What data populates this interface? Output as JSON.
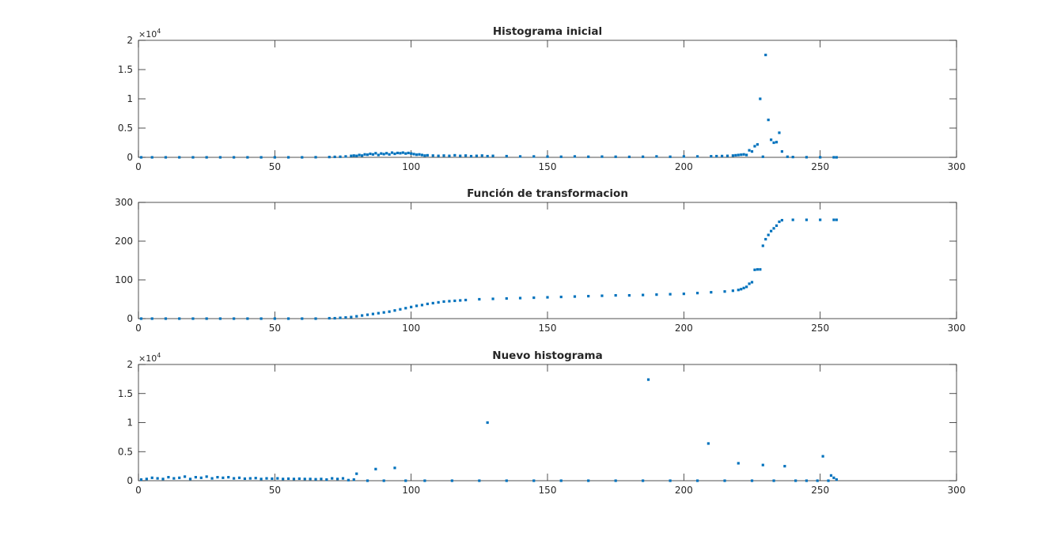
{
  "figure": {
    "background": "#ffffff"
  },
  "chart_data": [
    {
      "type": "scatter",
      "title": "Histograma inicial",
      "xlabel": "",
      "ylabel": "",
      "xlim": [
        0,
        300
      ],
      "ylim": [
        0,
        20000
      ],
      "x_ticks": [
        0,
        50,
        100,
        150,
        200,
        250,
        300
      ],
      "y_ticks": [
        0,
        5000,
        10000,
        15000,
        20000
      ],
      "y_tick_labels": [
        "0",
        "0.5",
        "1",
        "1.5",
        "2"
      ],
      "y_exponent_base": "×10",
      "y_exponent_power": "4",
      "grid": false,
      "legend": null,
      "marker_color": "#0072bd",
      "series": [
        {
          "x": [
            1,
            5,
            10,
            15,
            20,
            25,
            30,
            35,
            40,
            45,
            50,
            55,
            60,
            65,
            70,
            72,
            74,
            76,
            78,
            79,
            80,
            81,
            82,
            83,
            84,
            85,
            86,
            87,
            88,
            89,
            90,
            91,
            92,
            93,
            94,
            95,
            96,
            97,
            98,
            99,
            100,
            101,
            102,
            103,
            104,
            105,
            106,
            108,
            110,
            112,
            114,
            116,
            118,
            120,
            122,
            124,
            126,
            128,
            130,
            135,
            140,
            145,
            150,
            155,
            160,
            165,
            170,
            175,
            180,
            185,
            190,
            195,
            200,
            205,
            210,
            212,
            214,
            216,
            218,
            219,
            220,
            221,
            222,
            223,
            224,
            225,
            226,
            227,
            228,
            229,
            230,
            231,
            232,
            233,
            234,
            235,
            236,
            238,
            240,
            245,
            250,
            255,
            256
          ],
          "y": [
            0,
            0,
            0,
            0,
            0,
            0,
            0,
            0,
            0,
            0,
            0,
            0,
            0,
            20,
            50,
            80,
            100,
            150,
            250,
            300,
            250,
            400,
            300,
            500,
            450,
            600,
            500,
            700,
            400,
            650,
            550,
            700,
            500,
            800,
            600,
            750,
            700,
            800,
            650,
            750,
            650,
            550,
            450,
            500,
            400,
            300,
            350,
            300,
            250,
            300,
            250,
            350,
            250,
            300,
            200,
            250,
            300,
            200,
            250,
            200,
            150,
            150,
            120,
            100,
            150,
            100,
            120,
            100,
            80,
            100,
            150,
            100,
            150,
            150,
            180,
            200,
            220,
            250,
            300,
            350,
            400,
            450,
            500,
            400,
            1200,
            1000,
            1900,
            2200,
            10000,
            100,
            17500,
            6400,
            3000,
            2500,
            2600,
            4200,
            1000,
            100,
            50,
            20,
            10,
            5,
            0
          ]
        }
      ]
    },
    {
      "type": "scatter",
      "title": "Función de transformacion",
      "xlabel": "",
      "ylabel": "",
      "xlim": [
        0,
        300
      ],
      "ylim": [
        0,
        300
      ],
      "x_ticks": [
        0,
        50,
        100,
        150,
        200,
        250,
        300
      ],
      "y_ticks": [
        0,
        100,
        200,
        300
      ],
      "y_tick_labels": [
        "0",
        "100",
        "200",
        "300"
      ],
      "grid": false,
      "legend": null,
      "marker_color": "#0072bd",
      "series": [
        {
          "x": [
            1,
            5,
            10,
            15,
            20,
            25,
            30,
            35,
            40,
            45,
            50,
            55,
            60,
            65,
            70,
            72,
            74,
            76,
            78,
            80,
            82,
            84,
            86,
            88,
            90,
            92,
            94,
            96,
            98,
            100,
            102,
            104,
            106,
            108,
            110,
            112,
            114,
            116,
            118,
            120,
            125,
            130,
            135,
            140,
            145,
            150,
            155,
            160,
            165,
            170,
            175,
            180,
            185,
            190,
            195,
            200,
            205,
            210,
            215,
            218,
            220,
            221,
            222,
            223,
            224,
            225,
            226,
            227,
            228,
            229,
            230,
            231,
            232,
            233,
            234,
            235,
            236,
            240,
            245,
            250,
            255,
            256
          ],
          "y": [
            0,
            0,
            0,
            0,
            0,
            0,
            0,
            0,
            0,
            0,
            0,
            0,
            0,
            0,
            1,
            1,
            2,
            3,
            4,
            6,
            8,
            10,
            12,
            14,
            16,
            18,
            21,
            24,
            27,
            30,
            33,
            35,
            38,
            40,
            42,
            44,
            45,
            46,
            47,
            48,
            50,
            51,
            52,
            53,
            54,
            55,
            56,
            57,
            58,
            59,
            60,
            60,
            61,
            62,
            63,
            64,
            66,
            68,
            70,
            72,
            74,
            76,
            79,
            82,
            90,
            94,
            126,
            127,
            127,
            188,
            205,
            216,
            226,
            233,
            240,
            250,
            254,
            255,
            255,
            255,
            255,
            255
          ]
        }
      ]
    },
    {
      "type": "scatter",
      "title": "Nuevo histograma",
      "xlabel": "",
      "ylabel": "",
      "xlim": [
        0,
        300
      ],
      "ylim": [
        0,
        20000
      ],
      "x_ticks": [
        0,
        50,
        100,
        150,
        200,
        250,
        300
      ],
      "y_ticks": [
        0,
        5000,
        10000,
        15000,
        20000
      ],
      "y_tick_labels": [
        "0",
        "0.5",
        "1",
        "1.5",
        "2"
      ],
      "y_exponent_base": "×10",
      "y_exponent_power": "4",
      "grid": false,
      "legend": null,
      "marker_color": "#0072bd",
      "series": [
        {
          "x": [
            1,
            3,
            5,
            7,
            9,
            11,
            13,
            15,
            17,
            19,
            21,
            23,
            25,
            27,
            29,
            31,
            33,
            35,
            37,
            39,
            41,
            43,
            45,
            47,
            49,
            51,
            53,
            55,
            57,
            59,
            61,
            63,
            65,
            67,
            69,
            71,
            73,
            75,
            77,
            79,
            80,
            84,
            87,
            90,
            94,
            98,
            105,
            115,
            125,
            128,
            135,
            145,
            155,
            165,
            175,
            185,
            187,
            195,
            205,
            209,
            215,
            220,
            225,
            229,
            233,
            237,
            241,
            245,
            249,
            251,
            253,
            254,
            255,
            256
          ],
          "y": [
            200,
            300,
            500,
            400,
            300,
            600,
            400,
            500,
            700,
            300,
            600,
            500,
            700,
            400,
            600,
            500,
            600,
            400,
            500,
            350,
            400,
            450,
            300,
            400,
            350,
            400,
            300,
            350,
            300,
            350,
            300,
            300,
            250,
            300,
            200,
            400,
            300,
            400,
            100,
            200,
            1200,
            0,
            2000,
            0,
            2200,
            0,
            0,
            0,
            0,
            10000,
            0,
            0,
            0,
            0,
            0,
            0,
            17400,
            0,
            0,
            6400,
            0,
            3000,
            0,
            2700,
            0,
            2500,
            0,
            0,
            0,
            4200,
            0,
            900,
            500,
            200
          ]
        }
      ]
    }
  ]
}
